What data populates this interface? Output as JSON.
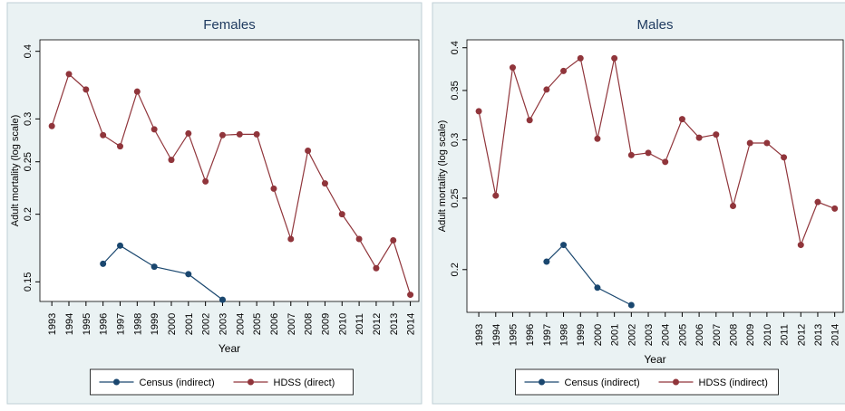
{
  "chart_data": [
    {
      "type": "line",
      "title": "Females",
      "xlabel": "Year",
      "ylabel": "Adult mortality (log scale)",
      "log_y": true,
      "grid": false,
      "xlim": [
        1992.3,
        2014.5
      ],
      "xticks": [
        1993,
        1994,
        1995,
        1996,
        1997,
        1998,
        1999,
        2000,
        2001,
        2002,
        2003,
        2004,
        2005,
        2006,
        2007,
        2008,
        2009,
        2010,
        2011,
        2012,
        2013,
        2014
      ],
      "ylim": [
        0.138,
        0.42
      ],
      "yticks": [
        0.15,
        0.2,
        0.25,
        0.3,
        0.4
      ],
      "series": [
        {
          "name": "Census (indirect)",
          "color": "#1a476f",
          "x": [
            1996,
            1997,
            1999,
            2001,
            2003
          ],
          "values": [
            0.162,
            0.175,
            0.16,
            0.155,
            0.139
          ]
        },
        {
          "name": "HDSS (direct)",
          "color": "#90353b",
          "x": [
            1993,
            1994,
            1995,
            1996,
            1997,
            1998,
            1999,
            2000,
            2001,
            2002,
            2003,
            2004,
            2005,
            2006,
            2007,
            2008,
            2009,
            2010,
            2011,
            2012,
            2013,
            2014
          ],
          "values": [
            0.291,
            0.363,
            0.34,
            0.28,
            0.267,
            0.337,
            0.287,
            0.252,
            0.282,
            0.23,
            0.28,
            0.281,
            0.281,
            0.223,
            0.18,
            0.262,
            0.228,
            0.2,
            0.18,
            0.159,
            0.179,
            0.142
          ]
        }
      ]
    },
    {
      "type": "line",
      "title": "Males",
      "xlabel": "Year",
      "ylabel": "Adult mortality (log scale)",
      "log_y": true,
      "grid": false,
      "xlim": [
        1992.3,
        2014.5
      ],
      "xticks": [
        1993,
        1994,
        1995,
        1996,
        1997,
        1998,
        1999,
        2000,
        2001,
        2002,
        2003,
        2004,
        2005,
        2006,
        2007,
        2008,
        2009,
        2010,
        2011,
        2012,
        2013,
        2014
      ],
      "ylim": [
        0.175,
        0.41
      ],
      "yticks": [
        0.2,
        0.25,
        0.3,
        0.35,
        0.4
      ],
      "series": [
        {
          "name": "Census (indirect)",
          "color": "#1a476f",
          "x": [
            1997,
            1998,
            2000,
            2002
          ],
          "values": [
            0.205,
            0.216,
            0.189,
            0.179
          ]
        },
        {
          "name": "HDSS (indirect)",
          "color": "#90353b",
          "x": [
            1993,
            1994,
            1995,
            1996,
            1997,
            1998,
            1999,
            2000,
            2001,
            2002,
            2003,
            2004,
            2005,
            2006,
            2007,
            2008,
            2009,
            2010,
            2011,
            2012,
            2013,
            2014
          ],
          "values": [
            0.328,
            0.252,
            0.376,
            0.319,
            0.351,
            0.372,
            0.387,
            0.301,
            0.387,
            0.286,
            0.288,
            0.28,
            0.32,
            0.302,
            0.305,
            0.244,
            0.297,
            0.297,
            0.284,
            0.216,
            0.247,
            0.242
          ]
        }
      ]
    }
  ]
}
